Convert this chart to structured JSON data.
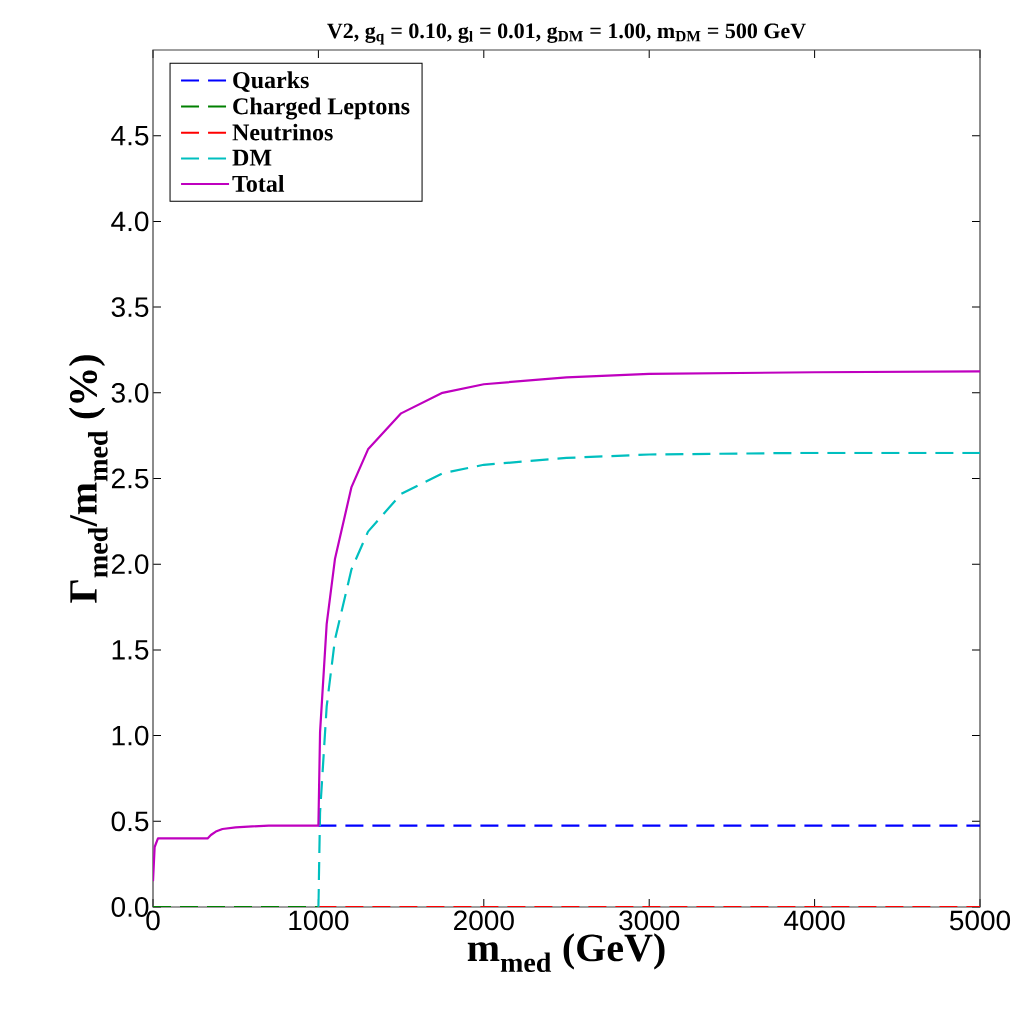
{
  "chart_data": {
    "type": "line",
    "title": "V2, g$_{q}$ = 0.10, g$_{l}$ = 0.01, g$_{DM}$ = 1.00, m$_{DM}$ = 500 GeV",
    "xlabel": "m$_{med}$ (GeV)",
    "ylabel": "Γ$_{med}$/m$_{med}$ (%)",
    "xlim": [
      0,
      5000
    ],
    "ylim": [
      0,
      5
    ],
    "xticks": [
      0,
      1000,
      2000,
      3000,
      4000,
      5000
    ],
    "yticks": [
      {
        "value": 0,
        "label": "0.0"
      },
      {
        "value": 0.5,
        "label": "0.5"
      },
      {
        "value": 1,
        "label": "1.0"
      },
      {
        "value": 1.5,
        "label": "1.5"
      },
      {
        "value": 2,
        "label": "2.0"
      },
      {
        "value": 2.5,
        "label": "2.5"
      },
      {
        "value": 3,
        "label": "3.0"
      },
      {
        "value": 3.5,
        "label": "3.5"
      },
      {
        "value": 4,
        "label": "4.0"
      },
      {
        "value": 4.5,
        "label": "4.5"
      }
    ],
    "grid": false,
    "legend": "top left",
    "marker": "none",
    "series": [
      {
        "name": "Quarks",
        "color": "#0000ff",
        "line_style": "dashed",
        "x": [
          1000,
          5000
        ],
        "values": [
          0.475,
          0.475
        ]
      },
      {
        "name": "Charged Leptons",
        "color": "#008000",
        "line_style": "dashed",
        "x": [
          0,
          1000
        ],
        "values": [
          0.0,
          0.0
        ]
      },
      {
        "name": "Neutrinos",
        "color": "#ff0000",
        "line_style": "dashed",
        "x": [
          1000,
          5000
        ],
        "values": [
          0.0,
          0.0
        ]
      },
      {
        "name": "DM",
        "color": "#00bfbf",
        "line_style": "dashed",
        "x": [
          1000,
          1010,
          1050,
          1100,
          1200,
          1300,
          1500,
          1750,
          2000,
          2500,
          3000,
          4000,
          5000
        ],
        "values": [
          0,
          0.55,
          1.17,
          1.56,
          1.97,
          2.19,
          2.41,
          2.53,
          2.58,
          2.62,
          2.64,
          2.65,
          2.65
        ]
      },
      {
        "name": "Total",
        "color": "#bf00bf",
        "line_style": "solid",
        "x": [
          0,
          10,
          30,
          330,
          350,
          380,
          420,
          500,
          600,
          700,
          1000,
          1010,
          1050,
          1100,
          1200,
          1300,
          1500,
          1750,
          2000,
          2500,
          3000,
          4000,
          5000
        ],
        "values": [
          0.15,
          0.35,
          0.4,
          0.4,
          0.42,
          0.44,
          0.455,
          0.465,
          0.47,
          0.475,
          0.475,
          1.02,
          1.65,
          2.03,
          2.45,
          2.67,
          2.88,
          3.0,
          3.05,
          3.09,
          3.11,
          3.12,
          3.125
        ]
      }
    ]
  }
}
